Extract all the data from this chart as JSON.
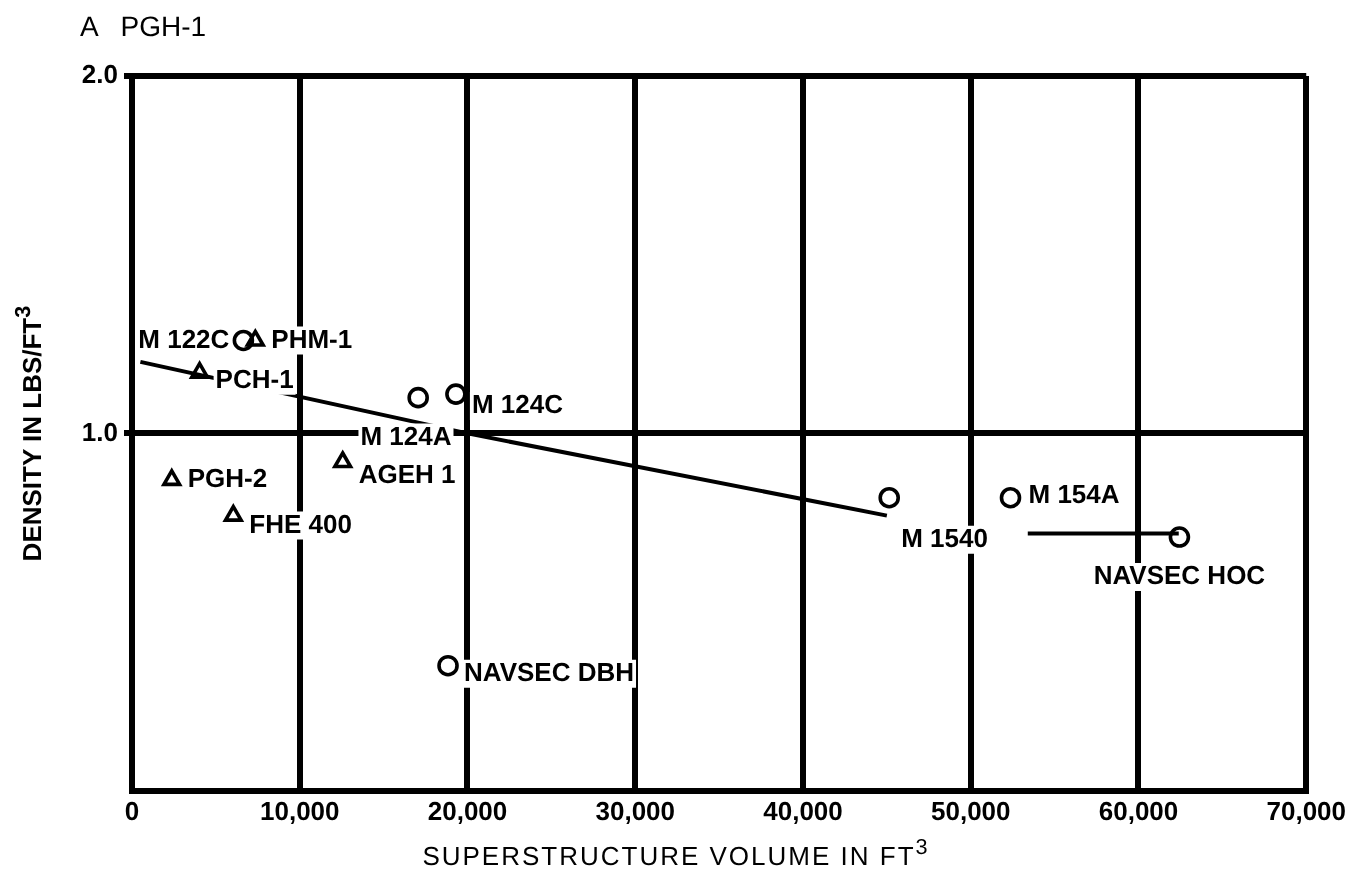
{
  "chart_data": {
    "type": "scatter",
    "xlabel": "SUPERSTRUCTURE VOLUME IN FT$^{3}$",
    "ylabel": "DENSITY IN LBS/FT$^{3}$",
    "xlim": [
      0,
      70000
    ],
    "xticks": [
      {
        "value": 0,
        "label": "0"
      },
      {
        "value": 10000,
        "label": "10,000"
      },
      {
        "value": 20000,
        "label": "20,000"
      },
      {
        "value": 30000,
        "label": "30,000"
      },
      {
        "value": 40000,
        "label": "40,000"
      },
      {
        "value": 50000,
        "label": "50,000"
      },
      {
        "value": 60000,
        "label": "60,000"
      },
      {
        "value": 70000,
        "label": "70,000"
      }
    ],
    "ylim": [
      0,
      2
    ],
    "yticks": [
      {
        "value": 1,
        "label": "1.0"
      },
      {
        "value": 2,
        "label": "2.0"
      }
    ],
    "grid": true,
    "legend": false,
    "series": [
      {
        "marker": "triangle",
        "color": "#000000",
        "x": [
          7350,
          4030,
          2370,
          6040,
          12560
        ],
        "values": [
          1.26,
          1.17,
          0.87,
          0.77,
          0.92
        ]
      },
      {
        "marker": "circle",
        "color": "#000000",
        "x": [
          6640,
          17060,
          19310,
          45140,
          52370,
          62440,
          18840
        ],
        "values": [
          1.26,
          1.1,
          1.11,
          0.82,
          0.82,
          0.71,
          0.35
        ]
      },
      {
        "type": "line",
        "marker": "none",
        "color": "#000000",
        "x": [
          500,
          20000,
          45000
        ],
        "values": [
          1.2,
          1.0,
          0.77
        ]
      },
      {
        "type": "line",
        "marker": "none",
        "color": "#000000",
        "x": [
          53400,
          62400
        ],
        "values": [
          0.72,
          0.72
        ]
      }
    ],
    "annotations": [
      "A   PGH-1",
      {
        "text": "M 122C",
        "x": 6640,
        "y": 1.26
      },
      {
        "text": "PHM-1",
        "x": 7350,
        "y": 1.26
      },
      {
        "text": "PCH-1",
        "x": 4030,
        "y": 1.17
      },
      {
        "text": "M 124C",
        "x": 19310,
        "y": 1.11
      },
      {
        "text": "M 124A",
        "x": 20000,
        "y": 1.0
      },
      {
        "text": "PGH-2",
        "x": 2370,
        "y": 0.87
      },
      {
        "text": "AGEH 1",
        "x": 12560,
        "y": 0.92
      },
      {
        "text": "FHE 400",
        "x": 6040,
        "y": 0.77
      },
      {
        "text": "NAVSEC DBH",
        "x": 18840,
        "y": 0.35
      },
      {
        "text": "M 1540",
        "x": 45140,
        "y": 0.82
      },
      {
        "text": "M 154A",
        "x": 52370,
        "y": 0.82
      },
      {
        "text": "NAVSEC HOC",
        "x": 62440,
        "y": 0.71
      }
    ]
  }
}
